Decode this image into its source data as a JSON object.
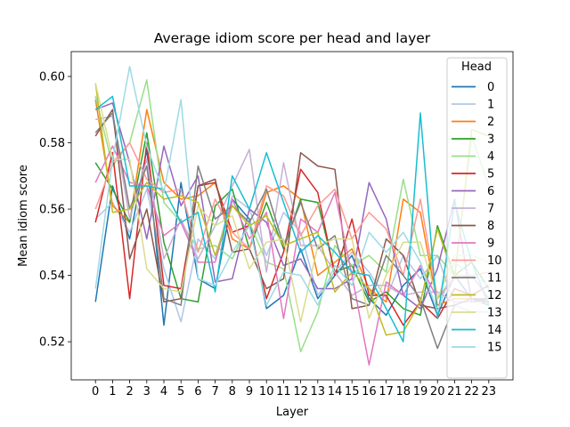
{
  "chart_data": {
    "type": "line",
    "title": "Average idiom score per head and layer",
    "xlabel": "Layer",
    "ylabel": "Mean idiom score",
    "x": [
      0,
      1,
      2,
      3,
      4,
      5,
      6,
      7,
      8,
      9,
      10,
      11,
      12,
      13,
      14,
      15,
      16,
      17,
      18,
      19,
      20,
      21,
      22,
      23
    ],
    "x_tick_labels": [
      "0",
      "1",
      "2",
      "3",
      "4",
      "5",
      "6",
      "7",
      "8",
      "9",
      "10",
      "11",
      "12",
      "13",
      "14",
      "15",
      "16",
      "17",
      "18",
      "19",
      "20",
      "21",
      "22",
      "23"
    ],
    "ylim": [
      0.5085,
      0.6075
    ],
    "y_ticks": [
      0.52,
      0.54,
      0.56,
      0.58,
      0.6
    ],
    "y_tick_labels": [
      "0.52",
      "0.54",
      "0.56",
      "0.58",
      "0.60"
    ],
    "grid": false,
    "legend": {
      "title": "Head",
      "position": "top-right"
    },
    "series": [
      {
        "name": "0",
        "color": "#1f77b4",
        "values": [
          0.532,
          0.567,
          0.551,
          0.578,
          0.525,
          0.568,
          0.539,
          0.536,
          0.563,
          0.557,
          0.53,
          0.534,
          0.548,
          0.533,
          0.54,
          0.546,
          0.533,
          0.528,
          0.537,
          0.542,
          0.528,
          0.54,
          0.533,
          0.531
        ]
      },
      {
        "name": "1",
        "color": "#aec7e8",
        "values": [
          0.557,
          0.562,
          0.553,
          0.566,
          0.542,
          0.526,
          0.551,
          0.545,
          0.564,
          0.56,
          0.546,
          0.559,
          0.553,
          0.534,
          0.541,
          0.547,
          0.541,
          0.533,
          0.546,
          0.539,
          0.546,
          0.531,
          0.529,
          0.529
        ]
      },
      {
        "name": "2",
        "color": "#ff7f0e",
        "values": [
          0.593,
          0.561,
          0.556,
          0.59,
          0.568,
          0.563,
          0.564,
          0.568,
          0.551,
          0.548,
          0.565,
          0.567,
          0.563,
          0.54,
          0.544,
          0.548,
          0.536,
          0.532,
          0.563,
          0.559,
          0.531,
          0.533,
          0.533,
          0.532
        ]
      },
      {
        "name": "3",
        "color": "#2ca02c",
        "values": [
          0.574,
          0.566,
          0.556,
          0.583,
          0.55,
          0.533,
          0.532,
          0.561,
          0.566,
          0.548,
          0.562,
          0.548,
          0.563,
          0.562,
          0.541,
          0.543,
          0.532,
          0.535,
          0.53,
          0.528,
          0.555,
          0.54,
          0.544,
          0.536
        ]
      },
      {
        "name": "4",
        "color": "#98df8a",
        "values": [
          0.594,
          0.573,
          0.58,
          0.599,
          0.562,
          0.556,
          0.548,
          0.549,
          0.545,
          0.556,
          0.544,
          0.542,
          0.517,
          0.529,
          0.549,
          0.543,
          0.546,
          0.541,
          0.569,
          0.546,
          0.546,
          0.54,
          0.582,
          0.567
        ]
      },
      {
        "name": "5",
        "color": "#d62728",
        "values": [
          0.556,
          0.577,
          0.533,
          0.58,
          0.537,
          0.536,
          0.567,
          0.568,
          0.553,
          0.555,
          0.533,
          0.547,
          0.572,
          0.565,
          0.54,
          0.557,
          0.534,
          0.534,
          0.525,
          0.532,
          0.527,
          0.536,
          0.534,
          0.537
        ]
      },
      {
        "name": "6",
        "color": "#9467bd",
        "values": [
          0.59,
          0.592,
          0.574,
          0.551,
          0.579,
          0.561,
          0.57,
          0.538,
          0.539,
          0.56,
          0.556,
          0.543,
          0.545,
          0.536,
          0.536,
          0.539,
          0.568,
          0.557,
          0.534,
          0.53,
          0.542,
          0.563,
          0.532,
          0.533
        ]
      },
      {
        "name": "7",
        "color": "#c5b0d5",
        "values": [
          0.587,
          0.588,
          0.557,
          0.575,
          0.545,
          0.557,
          0.545,
          0.555,
          0.567,
          0.578,
          0.541,
          0.574,
          0.549,
          0.549,
          0.541,
          0.534,
          0.537,
          0.537,
          0.534,
          0.535,
          0.535,
          0.532,
          0.532,
          0.532
        ]
      },
      {
        "name": "8",
        "color": "#8c564b",
        "values": [
          0.582,
          0.59,
          0.545,
          0.56,
          0.532,
          0.533,
          0.567,
          0.569,
          0.547,
          0.548,
          0.536,
          0.539,
          0.577,
          0.573,
          0.572,
          0.53,
          0.531,
          0.551,
          0.546,
          0.531,
          0.53,
          0.531,
          0.533,
          0.532
        ]
      },
      {
        "name": "9",
        "color": "#e377c2",
        "values": [
          0.568,
          0.579,
          0.568,
          0.567,
          0.552,
          0.556,
          0.544,
          0.544,
          0.563,
          0.551,
          0.559,
          0.527,
          0.557,
          0.553,
          0.565,
          0.54,
          0.513,
          0.538,
          0.534,
          0.543,
          0.533,
          0.539,
          0.54,
          0.533
        ]
      },
      {
        "name": "10",
        "color": "#ff9896",
        "values": [
          0.56,
          0.574,
          0.58,
          0.569,
          0.565,
          0.566,
          0.547,
          0.563,
          0.553,
          0.548,
          0.567,
          0.564,
          0.552,
          0.561,
          0.566,
          0.551,
          0.559,
          0.554,
          0.54,
          0.563,
          0.533,
          0.54,
          0.54,
          0.541
        ]
      },
      {
        "name": "11",
        "color": "#7f7f7f",
        "values": [
          0.583,
          0.589,
          0.56,
          0.573,
          0.533,
          0.531,
          0.573,
          0.557,
          0.561,
          0.556,
          0.566,
          0.549,
          0.562,
          0.548,
          0.552,
          0.533,
          0.531,
          0.546,
          0.54,
          0.533,
          0.518,
          0.531,
          0.533,
          0.533
        ]
      },
      {
        "name": "12",
        "color": "#bcbd22",
        "values": [
          0.598,
          0.559,
          0.56,
          0.568,
          0.563,
          0.564,
          0.562,
          0.546,
          0.561,
          0.555,
          0.558,
          0.549,
          0.551,
          0.553,
          0.535,
          0.541,
          0.536,
          0.522,
          0.523,
          0.532,
          0.554,
          0.539,
          0.584,
          0.582
        ]
      },
      {
        "name": "13",
        "color": "#dbdb8d",
        "values": [
          0.598,
          0.575,
          0.575,
          0.542,
          0.536,
          0.535,
          0.561,
          0.555,
          0.558,
          0.542,
          0.55,
          0.551,
          0.526,
          0.549,
          0.551,
          0.551,
          0.527,
          0.54,
          0.55,
          0.55,
          0.533,
          0.546,
          0.546,
          0.544
        ]
      },
      {
        "name": "14",
        "color": "#17becf",
        "values": [
          0.59,
          0.594,
          0.567,
          0.567,
          0.566,
          0.556,
          0.559,
          0.535,
          0.57,
          0.56,
          0.577,
          0.562,
          0.547,
          0.552,
          0.547,
          0.541,
          0.54,
          0.53,
          0.52,
          0.589,
          0.527,
          0.562,
          0.544,
          0.531
        ]
      },
      {
        "name": "15",
        "color": "#9edae5",
        "values": [
          0.536,
          0.575,
          0.603,
          0.579,
          0.565,
          0.593,
          0.539,
          0.537,
          0.547,
          0.555,
          0.531,
          0.541,
          0.54,
          0.531,
          0.543,
          0.537,
          0.553,
          0.547,
          0.553,
          0.544,
          0.529,
          0.544,
          0.54,
          0.537
        ]
      }
    ]
  }
}
